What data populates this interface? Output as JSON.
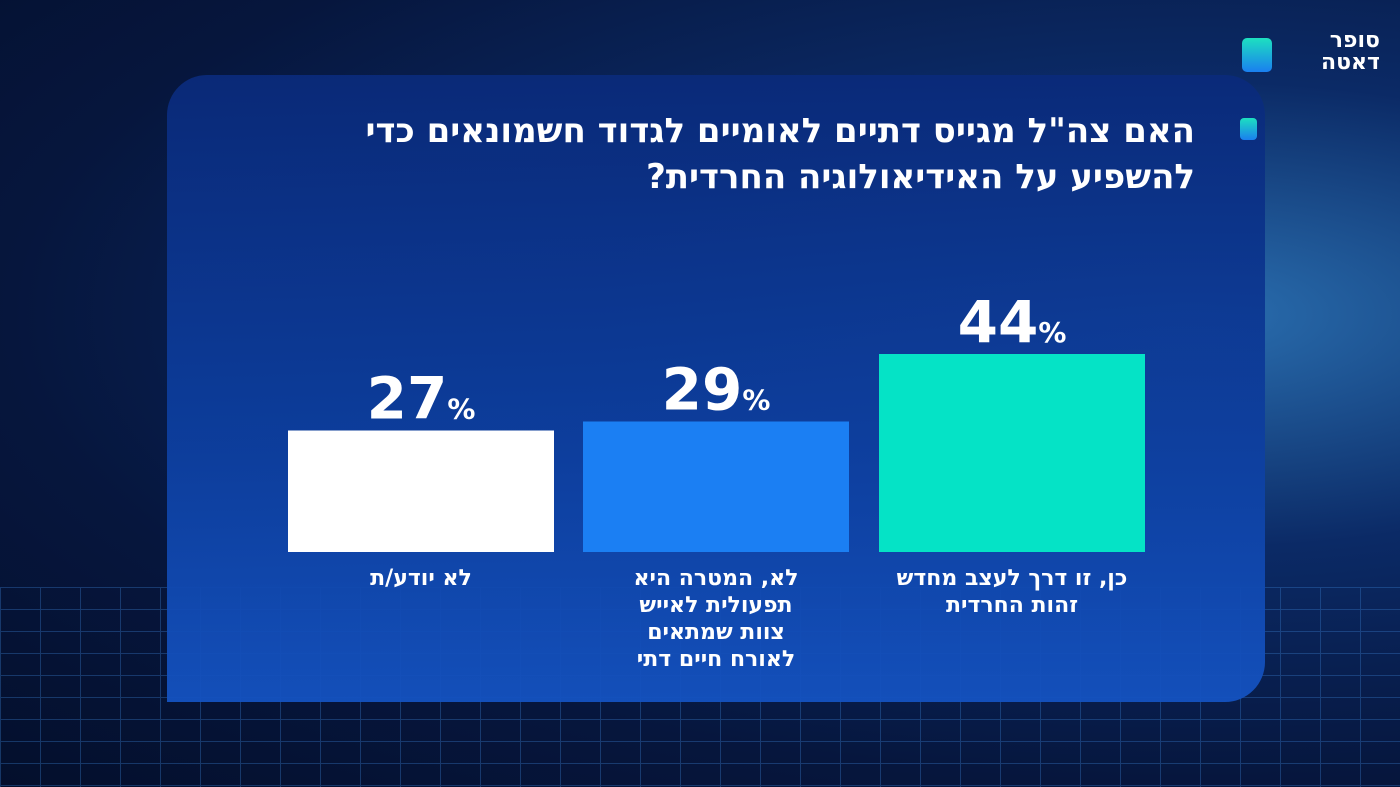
{
  "logo": {
    "line1": "סופר",
    "line2": "דאטה"
  },
  "chart_data": {
    "type": "bar",
    "title": "האם צה\"ל מגייס דתיים לאומיים לגדוד חשמונאים כדי להשפיע על האידיאולוגיה החרדית?",
    "categories": [
      "כן, זו דרך לעצב מחדש זהות החרדית",
      "לא, המטרה היא תפעולית לאייש צוות שמתאים לאורח חיים דתי",
      "לא יודע/ת"
    ],
    "values": [
      44,
      29,
      27
    ],
    "value_suffix": "%",
    "colors": [
      "#05e3c6",
      "#1b7ff3",
      "#ffffff"
    ],
    "ylim": [
      0,
      100
    ],
    "grid": false
  }
}
